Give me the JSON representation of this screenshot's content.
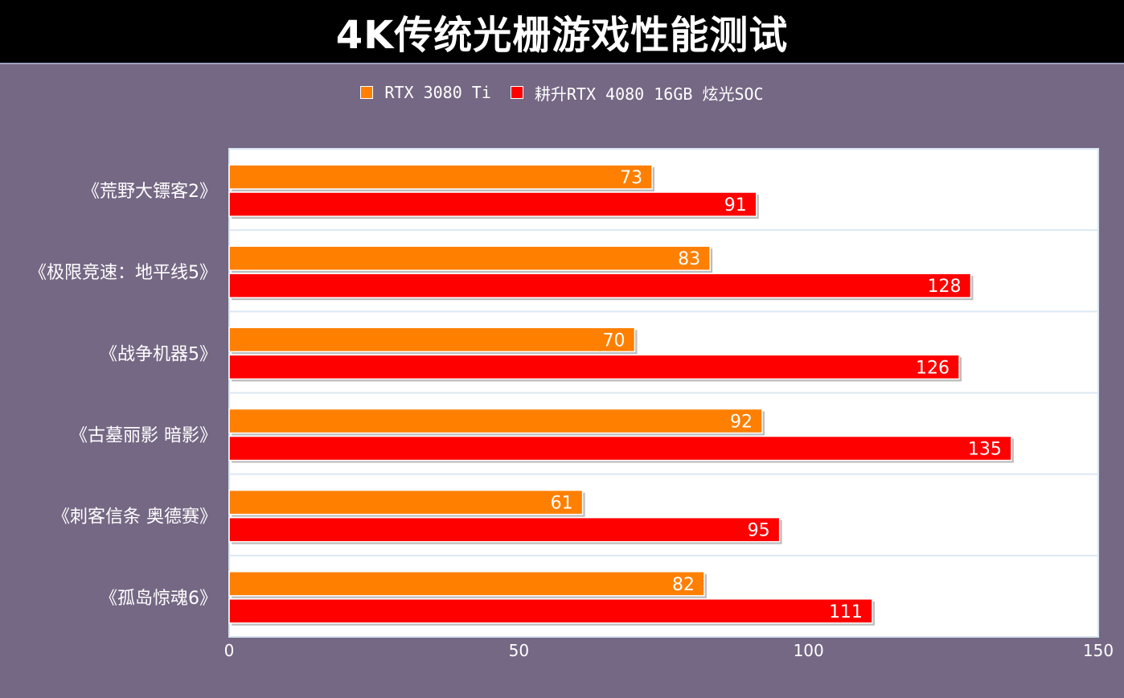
{
  "title": "4K传统光栅游戏性能测试",
  "chart_data": {
    "type": "bar",
    "orientation": "horizontal",
    "title": "4K传统光栅游戏性能测试",
    "categories": [
      "《荒野大镖客2》",
      "《极限竞速：地平线5》",
      "《战争机器5》",
      "《古墓丽影 暗影》",
      "《刺客信条 奥德赛》",
      "《孤岛惊魂6》"
    ],
    "series": [
      {
        "name": "RTX 3080 Ti",
        "color": "#ff7f00",
        "values": [
          73,
          83,
          70,
          92,
          61,
          82
        ]
      },
      {
        "name": "耕升RTX 4080 16GB 炫光SOC",
        "color": "#ff0000",
        "values": [
          91,
          128,
          126,
          135,
          95,
          111
        ]
      }
    ],
    "xlim": [
      0,
      150
    ],
    "xticks": [
      "0",
      "50",
      "100",
      "150"
    ],
    "xlabel": "",
    "ylabel": "",
    "legend_position": "top-center",
    "grid": true
  }
}
